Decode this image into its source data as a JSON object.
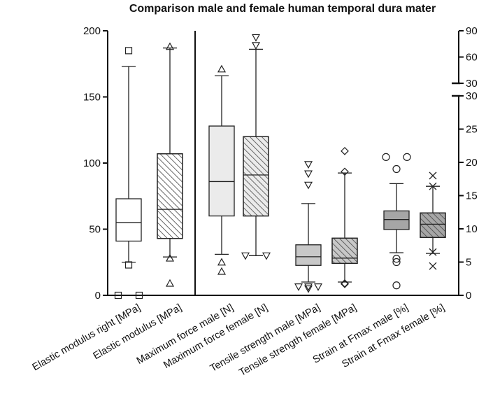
{
  "chart_data": {
    "type": "box",
    "title": "Comparison male and female human temporal dura mater",
    "colors": {
      "axis": "#111111",
      "white_box": "#ffffff",
      "light_grey_box": "#ebebeb",
      "mid_grey_box": "#c8c8c8",
      "dark_grey_box": "#a6a6a6",
      "hatch_line": "#444444"
    },
    "left_axis": {
      "range": [
        0,
        200
      ],
      "ticks": [
        0,
        50,
        100,
        150,
        200
      ],
      "applies_to": "Elastic modulus, Maximum force"
    },
    "right_axis": {
      "lower_segment": {
        "range": [
          0,
          30
        ],
        "ticks": [
          0,
          5,
          10,
          15,
          20,
          25,
          30
        ]
      },
      "upper_segment": {
        "range": [
          30,
          90
        ],
        "ticks": [
          30,
          60,
          90
        ]
      },
      "broken": true,
      "applies_to": "Tensile strength, Strain at Fmax"
    },
    "series": [
      {
        "name": "Elastic modulus right [MPa]",
        "axis": "left",
        "fill": "white",
        "hatched": false,
        "q1": 41,
        "median": 55,
        "q3": 73,
        "whisker_low": 25,
        "whisker_high": 173,
        "outlier_marker": "square",
        "outliers": [
          0,
          0,
          23,
          185
        ]
      },
      {
        "name": "Elastic modulus [MPa]",
        "axis": "left",
        "fill": "white",
        "hatched": true,
        "q1": 43,
        "median": 65,
        "q3": 107,
        "whisker_low": 29,
        "whisker_high": 187,
        "outlier_marker": "triangle-up",
        "outliers": [
          9,
          28,
          188
        ]
      },
      {
        "name": "Maximum force male [N]",
        "axis": "left",
        "fill": "light-grey",
        "hatched": false,
        "q1": 60,
        "median": 86,
        "q3": 128,
        "whisker_low": 31,
        "whisker_high": 166,
        "outlier_marker": "triangle-up",
        "outliers": [
          18,
          25,
          171
        ]
      },
      {
        "name": "Maximum force female [N]",
        "axis": "left",
        "fill": "light-grey",
        "hatched": true,
        "q1": 60,
        "median": 91,
        "q3": 120,
        "whisker_low": 30,
        "whisker_high": 186,
        "outlier_marker": "triangle-down",
        "outliers": [
          30,
          30,
          189,
          195
        ]
      },
      {
        "name": "Tensile strength male [MPa]",
        "axis": "right",
        "fill": "mid-grey",
        "hatched": false,
        "q1": 4.5,
        "median": 5.8,
        "q3": 7.6,
        "whisker_low": 2.0,
        "whisker_high": 13.8,
        "outlier_marker": "triangle-down",
        "outliers": [
          1.0,
          1.3,
          1.3,
          1.3,
          16.6,
          18.3,
          19.7
        ]
      },
      {
        "name": "Tensile strength female [MPa]",
        "axis": "right",
        "fill": "mid-grey",
        "hatched": true,
        "q1": 4.8,
        "median": 5.6,
        "q3": 8.6,
        "whisker_low": 2.0,
        "whisker_high": 18.4,
        "outlier_marker": "diamond",
        "outliers": [
          1.7,
          1.8,
          18.6,
          21.7
        ]
      },
      {
        "name": "Strain at Fmax male [%]",
        "axis": "right",
        "fill": "dark-grey",
        "hatched": false,
        "q1": 9.9,
        "median": 11.4,
        "q3": 12.7,
        "whisker_low": 6.4,
        "whisker_high": 16.8,
        "outlier_marker": "circle",
        "outliers": [
          1.5,
          5.0,
          5.5,
          19.0,
          20.8,
          20.8
        ]
      },
      {
        "name": "Strain at Fmax female [%]",
        "axis": "right",
        "fill": "dark-grey",
        "hatched": true,
        "q1": 8.7,
        "median": 10.7,
        "q3": 12.4,
        "whisker_low": 6.3,
        "whisker_high": 16.4,
        "outlier_marker": "x",
        "outliers": [
          4.4,
          6.5,
          16.4,
          18.0
        ]
      }
    ]
  }
}
